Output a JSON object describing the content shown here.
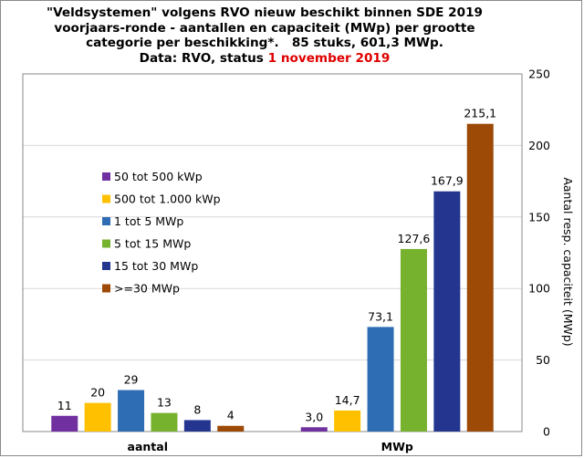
{
  "title": {
    "line1": "\"Veldsystemen\" volgens RVO nieuw beschikt binnen SDE 2019",
    "line2": "voorjaars-ronde - aantallen en capaciteit (MWp) per grootte",
    "line3": "categorie per beschikking*.   85 stuks, 601,3 MWp.",
    "line4_prefix": "Data: RVO, status ",
    "line4_highlight": "1 november 2019"
  },
  "colors": {
    "highlight": "#e00000",
    "grid": "#d9d9d9",
    "plot_border": "#8a8a8a"
  },
  "chart_data": {
    "type": "bar",
    "categories": [
      "aantal",
      "MWp"
    ],
    "series": [
      {
        "name": "50 tot 500 kWp",
        "color": "#7030a0",
        "values": [
          11,
          3.0
        ],
        "labels": [
          "11",
          "3,0"
        ]
      },
      {
        "name": "500 tot 1.000 kWp",
        "color": "#ffc000",
        "values": [
          20,
          14.7
        ],
        "labels": [
          "20",
          "14,7"
        ]
      },
      {
        "name": "1 tot 5 MWp",
        "color": "#2e6db4",
        "values": [
          29,
          73.1
        ],
        "labels": [
          "29",
          "73,1"
        ]
      },
      {
        "name": "5 tot 15 MWp",
        "color": "#77b22e",
        "values": [
          13,
          127.6
        ],
        "labels": [
          "13",
          "127,6"
        ]
      },
      {
        "name": "15 tot 30 MWp",
        "color": "#24358f",
        "values": [
          8,
          167.9
        ],
        "labels": [
          "8",
          "167,9"
        ]
      },
      {
        "name": ">=30 MWp",
        "color": "#9c4a06",
        "values": [
          4,
          215.1
        ],
        "labels": [
          "4",
          "215,1"
        ]
      }
    ],
    "xlabel": "",
    "ylabel": "Aantal resp. capaciteit (MWp)",
    "ylim": [
      0,
      250
    ],
    "yticks": [
      0,
      50,
      100,
      150,
      200,
      250
    ],
    "y_axis_side": "right",
    "grid": true,
    "legend_position": "left"
  }
}
